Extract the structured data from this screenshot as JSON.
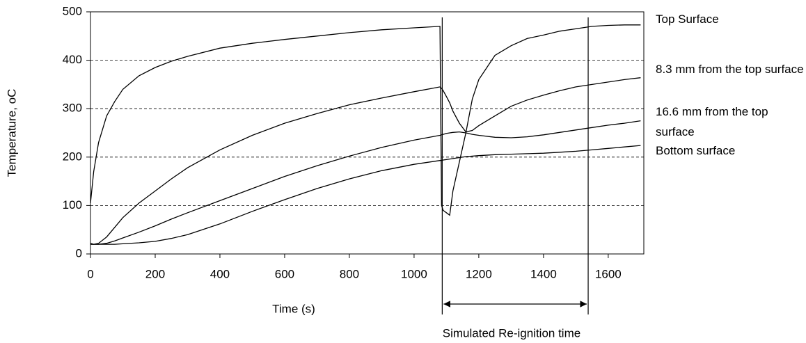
{
  "chart_data": {
    "type": "line",
    "xlabel": "Time (s)",
    "ylabel": "Temperature, oC",
    "annotation": "Simulated Re-ignition time",
    "vlines": [
      1087,
      1538
    ],
    "xlim": [
      0,
      1710
    ],
    "ylim": [
      0,
      500
    ],
    "xticks": [
      0,
      200,
      400,
      600,
      800,
      1000,
      1200,
      1400,
      1600
    ],
    "yticks": [
      0,
      100,
      200,
      300,
      400,
      500
    ],
    "grid": true,
    "x": [
      0,
      10,
      25,
      50,
      75,
      100,
      150,
      200,
      250,
      300,
      400,
      500,
      600,
      700,
      800,
      900,
      1000,
      1080,
      1085,
      1090,
      1100,
      1110,
      1120,
      1140,
      1160,
      1180,
      1200,
      1250,
      1300,
      1350,
      1400,
      1450,
      1500,
      1550,
      1600,
      1650,
      1700
    ],
    "series": [
      {
        "name": "Top Surface",
        "color": "#000000",
        "values": [
          105,
          170,
          230,
          285,
          315,
          340,
          368,
          385,
          398,
          408,
          425,
          435,
          443,
          450,
          457,
          463,
          467,
          470,
          100,
          90,
          85,
          80,
          130,
          190,
          250,
          320,
          360,
          410,
          430,
          445,
          452,
          460,
          465,
          470,
          472,
          473,
          473
        ]
      },
      {
        "name": "8.3 mm from the top surface",
        "color": "#000000",
        "values": [
          20,
          20,
          22,
          35,
          55,
          75,
          105,
          130,
          155,
          178,
          215,
          245,
          270,
          290,
          308,
          322,
          335,
          345,
          342,
          337,
          325,
          312,
          295,
          270,
          252,
          255,
          265,
          285,
          305,
          318,
          328,
          337,
          345,
          350,
          355,
          360,
          364
        ]
      },
      {
        "name": "16.6 mm from the top surface",
        "color": "#000000",
        "values": [
          20,
          20,
          20,
          22,
          27,
          33,
          45,
          58,
          72,
          85,
          110,
          135,
          160,
          182,
          202,
          220,
          235,
          245,
          246,
          247,
          249,
          250,
          251,
          252,
          250,
          247,
          245,
          241,
          240,
          242,
          246,
          251,
          256,
          261,
          266,
          270,
          275
        ]
      },
      {
        "name": "Bottom surface",
        "color": "#000000",
        "values": [
          22,
          20,
          20,
          20,
          20,
          21,
          23,
          26,
          32,
          40,
          62,
          88,
          112,
          135,
          155,
          172,
          185,
          193,
          193,
          194,
          195,
          196,
          197,
          199,
          201,
          202,
          203,
          205,
          206,
          207,
          208,
          210,
          212,
          215,
          218,
          221,
          224
        ]
      }
    ]
  }
}
